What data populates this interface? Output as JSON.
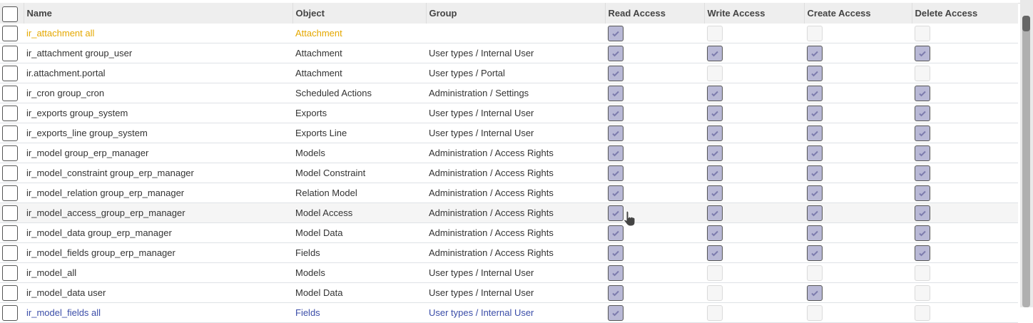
{
  "columns": [
    "Name",
    "Object",
    "Group",
    "Read Access",
    "Write Access",
    "Create Access",
    "Delete Access"
  ],
  "rows": [
    {
      "name": "ir_attachment all",
      "object": "Attachment",
      "group": "",
      "read": true,
      "write": false,
      "create": false,
      "delete": false,
      "style": "yellow"
    },
    {
      "name": "ir_attachment group_user",
      "object": "Attachment",
      "group": "User types / Internal User",
      "read": true,
      "write": true,
      "create": true,
      "delete": true
    },
    {
      "name": "ir.attachment.portal",
      "object": "Attachment",
      "group": "User types / Portal",
      "read": true,
      "write": false,
      "create": true,
      "delete": false
    },
    {
      "name": "ir_cron group_cron",
      "object": "Scheduled Actions",
      "group": "Administration / Settings",
      "read": true,
      "write": true,
      "create": true,
      "delete": true
    },
    {
      "name": "ir_exports group_system",
      "object": "Exports",
      "group": "User types / Internal User",
      "read": true,
      "write": true,
      "create": true,
      "delete": true
    },
    {
      "name": "ir_exports_line group_system",
      "object": "Exports Line",
      "group": "User types / Internal User",
      "read": true,
      "write": true,
      "create": true,
      "delete": true
    },
    {
      "name": "ir_model group_erp_manager",
      "object": "Models",
      "group": "Administration / Access Rights",
      "read": true,
      "write": true,
      "create": true,
      "delete": true
    },
    {
      "name": "ir_model_constraint group_erp_manager",
      "object": "Model Constraint",
      "group": "Administration / Access Rights",
      "read": true,
      "write": true,
      "create": true,
      "delete": true
    },
    {
      "name": "ir_model_relation group_erp_manager",
      "object": "Relation Model",
      "group": "Administration / Access Rights",
      "read": true,
      "write": true,
      "create": true,
      "delete": true
    },
    {
      "name": "ir_model_access_group_erp_manager",
      "object": "Model Access",
      "group": "Administration / Access Rights",
      "read": true,
      "write": true,
      "create": true,
      "delete": true,
      "style": "hover"
    },
    {
      "name": "ir_model_data group_erp_manager",
      "object": "Model Data",
      "group": "Administration / Access Rights",
      "read": true,
      "write": true,
      "create": true,
      "delete": true
    },
    {
      "name": "ir_model_fields group_erp_manager",
      "object": "Fields",
      "group": "Administration / Access Rights",
      "read": true,
      "write": true,
      "create": true,
      "delete": true
    },
    {
      "name": "ir_model_all",
      "object": "Models",
      "group": "User types / Internal User",
      "read": true,
      "write": false,
      "create": false,
      "delete": false
    },
    {
      "name": "ir_model_data user",
      "object": "Model Data",
      "group": "User types / Internal User",
      "read": true,
      "write": false,
      "create": true,
      "delete": false
    },
    {
      "name": "ir_model_fields all",
      "object": "Fields",
      "group": "User types / Internal User",
      "read": true,
      "write": false,
      "create": false,
      "delete": false,
      "style": "partial"
    }
  ],
  "colors": {
    "checked": "#b9b9d6",
    "check_mark": "#7c7bad",
    "highlight": "#e5a800"
  }
}
